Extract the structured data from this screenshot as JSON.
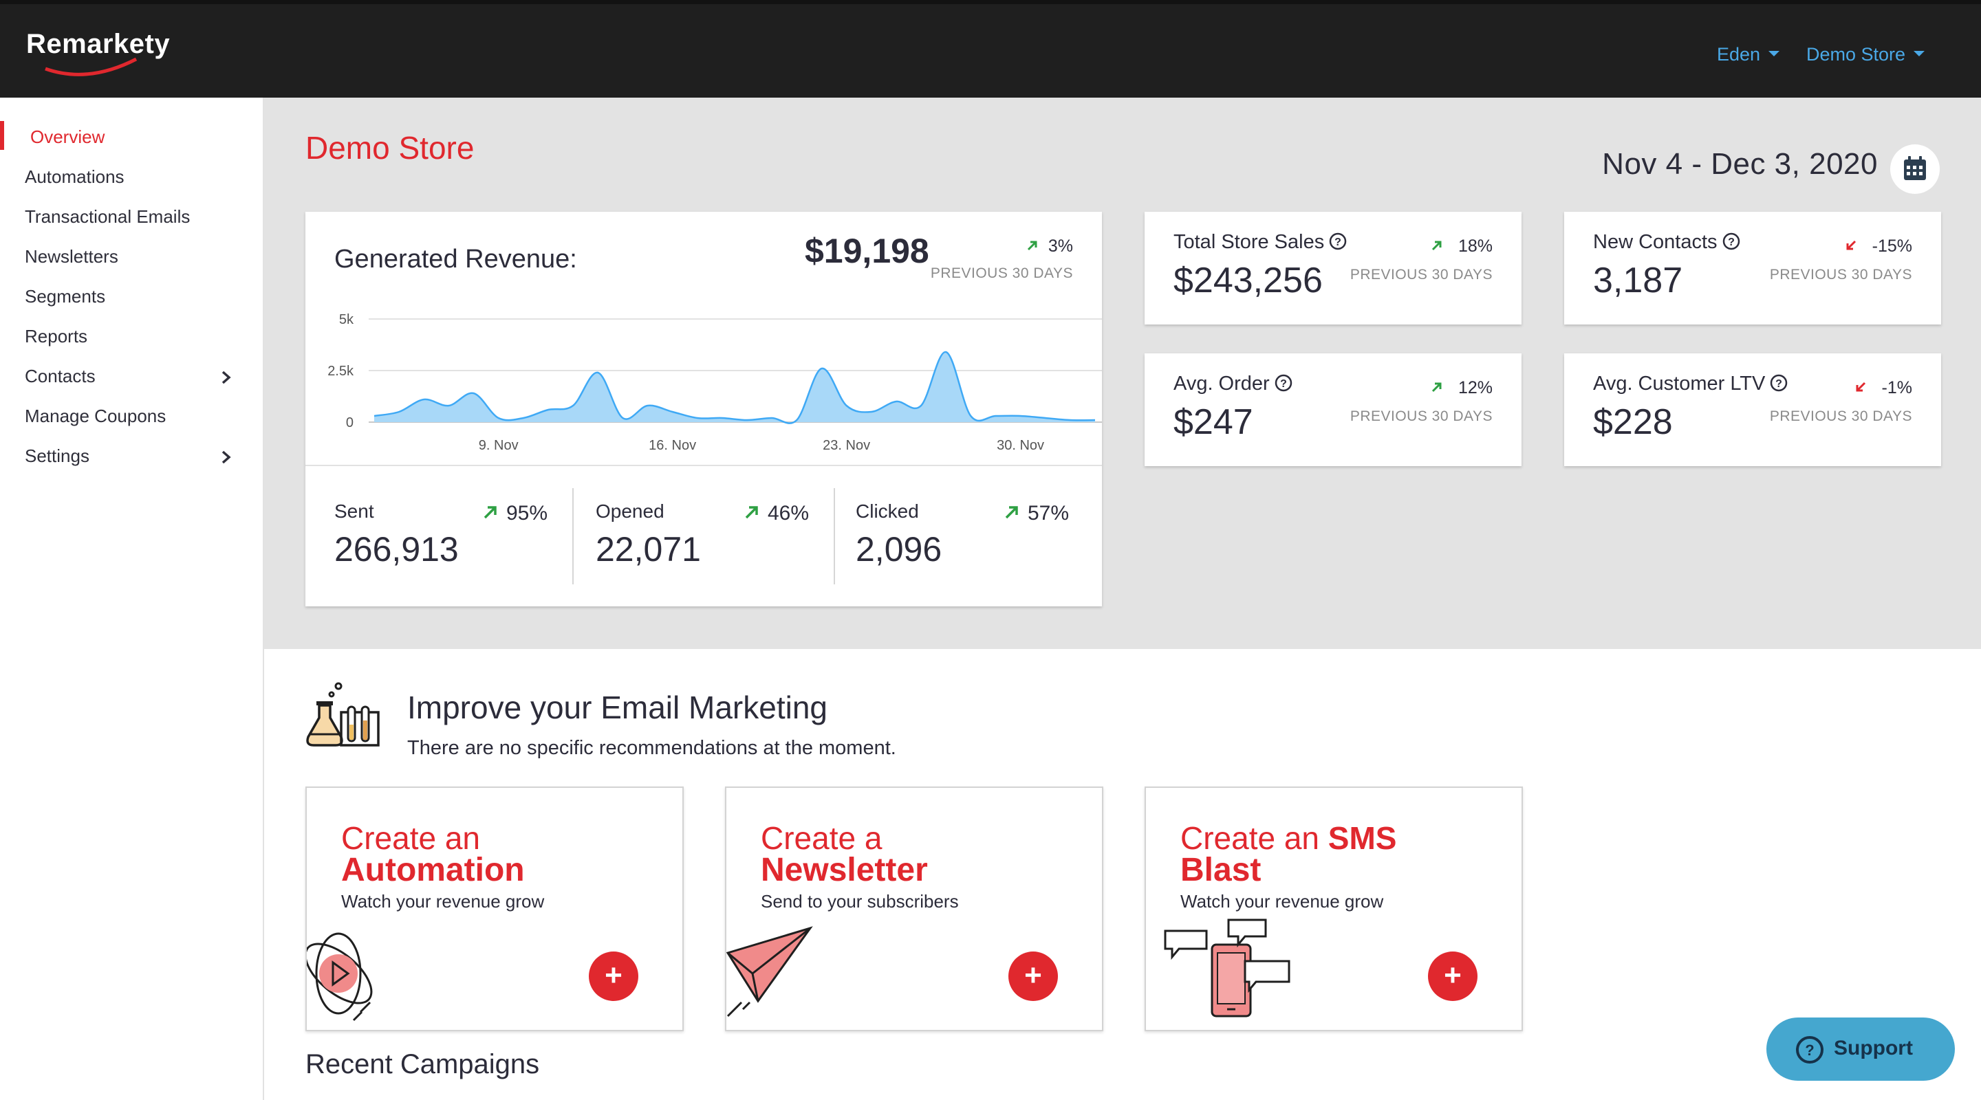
{
  "header": {
    "logo": "Remarkety",
    "user_menu": "Eden",
    "store_menu": "Demo Store"
  },
  "sidebar": {
    "items": [
      {
        "label": "Overview",
        "active": true
      },
      {
        "label": "Automations"
      },
      {
        "label": "Transactional Emails"
      },
      {
        "label": "Newsletters"
      },
      {
        "label": "Segments"
      },
      {
        "label": "Reports"
      },
      {
        "label": "Contacts",
        "expandable": true
      },
      {
        "label": "Manage Coupons"
      },
      {
        "label": "Settings",
        "expandable": true
      }
    ]
  },
  "main": {
    "title": "Demo Store",
    "date_range": "Nov 4 - Dec 3, 2020",
    "calendar_icon": "calendar-icon"
  },
  "revenue": {
    "label": "Generated Revenue:",
    "value": "$19,198",
    "trend": "3%",
    "trend_direction": "up",
    "previous": "PREVIOUS 30 DAYS",
    "stats": [
      {
        "label": "Sent",
        "value": "266,913",
        "trend": "95%"
      },
      {
        "label": "Opened",
        "value": "22,071",
        "trend": "46%"
      },
      {
        "label": "Clicked",
        "value": "2,096",
        "trend": "57%"
      }
    ]
  },
  "chart_data": {
    "type": "area",
    "x": [
      "Nov 4",
      "Nov 5",
      "Nov 6",
      "Nov 7",
      "Nov 8",
      "Nov 9",
      "Nov 10",
      "Nov 11",
      "Nov 12",
      "Nov 13",
      "Nov 14",
      "Nov 15",
      "Nov 16",
      "Nov 17",
      "Nov 18",
      "Nov 19",
      "Nov 20",
      "Nov 21",
      "Nov 22",
      "Nov 23",
      "Nov 24",
      "Nov 25",
      "Nov 26",
      "Nov 27",
      "Nov 28",
      "Nov 29",
      "Nov 30",
      "Dec 1",
      "Dec 2",
      "Dec 3"
    ],
    "values": [
      300,
      500,
      1100,
      800,
      1400,
      200,
      200,
      600,
      800,
      2400,
      200,
      800,
      500,
      200,
      200,
      100,
      200,
      100,
      2600,
      800,
      500,
      1000,
      800,
      3400,
      300,
      300,
      300,
      200,
      100,
      100
    ],
    "x_ticks": [
      "9. Nov",
      "16. Nov",
      "23. Nov",
      "30. Nov"
    ],
    "y_ticks": [
      "0",
      "2.5k",
      "5k"
    ],
    "ylim": [
      0,
      5000
    ],
    "fill_color": "#a8d8f8",
    "line_color": "#3fa9f5",
    "grid": true
  },
  "kpis": [
    {
      "label": "Total Store Sales",
      "value": "$243,256",
      "trend": "18%",
      "direction": "up",
      "previous": "PREVIOUS 30 DAYS"
    },
    {
      "label": "New Contacts",
      "value": "3,187",
      "trend": "-15%",
      "direction": "down",
      "previous": "PREVIOUS 30 DAYS"
    },
    {
      "label": "Avg. Order",
      "value": "$247",
      "trend": "12%",
      "direction": "up",
      "previous": "PREVIOUS 30 DAYS"
    },
    {
      "label": "Avg. Customer LTV",
      "value": "$228",
      "trend": "-1%",
      "direction": "down",
      "previous": "PREVIOUS 30 DAYS"
    }
  ],
  "improve": {
    "title": "Improve your Email Marketing",
    "subtitle": "There are no specific recommendations at the moment."
  },
  "actions": [
    {
      "line1": "Create an",
      "line2": "Automation",
      "sub": "Watch your revenue grow",
      "icon": "atom-play-icon"
    },
    {
      "line1": "Create a",
      "line2": "Newsletter",
      "sub": "Send to your subscribers",
      "icon": "paper-plane-icon"
    },
    {
      "line1_a": "Create an ",
      "line1_b": "SMS",
      "line2": "Blast",
      "sub": "Watch your revenue grow",
      "icon": "sms-phone-icon"
    }
  ],
  "recent": {
    "title": "Recent Campaigns"
  },
  "support": {
    "label": "Support"
  },
  "colors": {
    "brand_red": "#e0282e",
    "link_blue": "#4aa8e6",
    "up_green": "#2ea043",
    "down_red": "#e0282e",
    "support_bg": "#45a7cf"
  }
}
